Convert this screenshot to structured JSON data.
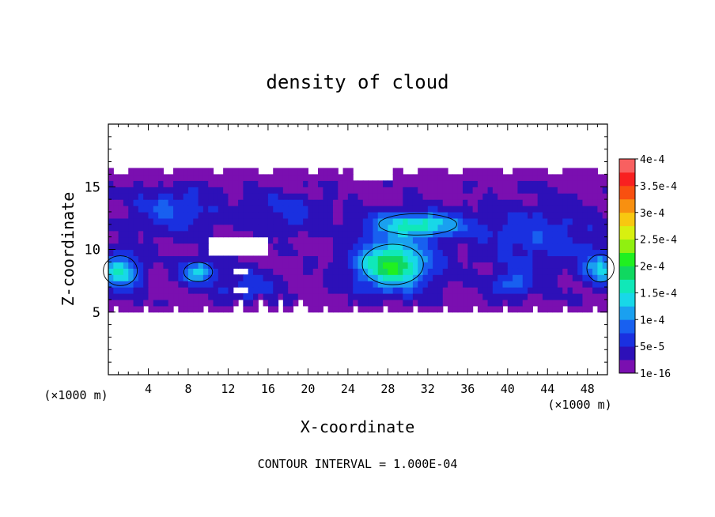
{
  "chart_data": {
    "type": "heatmap",
    "title": "density of cloud",
    "xlabel": "X-coordinate",
    "ylabel": "Z-coordinate",
    "x_unit": "(×1000 m)",
    "y_unit": "(×1000 m)",
    "xlim": [
      0,
      50
    ],
    "ylim": [
      0,
      20
    ],
    "x_ticks": [
      4,
      8,
      12,
      16,
      20,
      24,
      28,
      32,
      36,
      40,
      44,
      48
    ],
    "y_ticks": [
      5,
      10,
      15
    ],
    "footer": "CONTOUR INTERVAL = 1.000E-04",
    "colorbar": {
      "labels": [
        "1e-16",
        "5e-5",
        "1e-4",
        "1.5e-4",
        "2e-4",
        "2.5e-4",
        "3e-4",
        "3.5e-4",
        "4e-4"
      ],
      "levels": [
        0,
        2.5e-05,
        5e-05,
        7.5e-05,
        0.0001,
        0.000125,
        0.00015,
        0.000175,
        0.0002,
        0.000225,
        0.00025,
        0.000275,
        0.0003,
        0.000325,
        0.00035,
        0.000375,
        0.0004
      ],
      "colors": [
        "#7a0fb0",
        "#2d10b8",
        "#1a30e0",
        "#1860f0",
        "#1aa0f0",
        "#18d8e8",
        "#10e8b8",
        "#10d860",
        "#20f020",
        "#90f010",
        "#d8f010",
        "#f8c810",
        "#f89010",
        "#f85010",
        "#f82020",
        "#f86060"
      ]
    },
    "cloud_layer": {
      "base_z": 5.0,
      "top_z": 16.7
    },
    "features": [
      {
        "x": 28.5,
        "z": 8.8,
        "sx": 3.6,
        "sz": 1.9,
        "value": 0.00019
      },
      {
        "x": 31.0,
        "z": 12.0,
        "sx": 4.6,
        "sz": 1.0,
        "value": 0.00014
      },
      {
        "x": 1.2,
        "z": 8.3,
        "sx": 2.0,
        "sz": 1.4,
        "value": 0.00013
      },
      {
        "x": 9.0,
        "z": 8.2,
        "sx": 1.7,
        "sz": 0.9,
        "value": 0.00012
      },
      {
        "x": 49.3,
        "z": 8.5,
        "sx": 1.6,
        "sz": 1.3,
        "value": 0.00011
      },
      {
        "x": 6.5,
        "z": 13.2,
        "sx": 4.0,
        "sz": 1.8,
        "value": 6e-05
      },
      {
        "x": 18.0,
        "z": 13.0,
        "sx": 4.0,
        "sz": 1.6,
        "value": 4e-05
      },
      {
        "x": 43.0,
        "z": 11.0,
        "sx": 6.0,
        "sz": 2.5,
        "value": 5e-05
      },
      {
        "x": 14.0,
        "z": 7.0,
        "sx": 3.0,
        "sz": 1.2,
        "value": 5e-05
      },
      {
        "x": 40.5,
        "z": 7.3,
        "sx": 2.0,
        "sz": 1.0,
        "value": 7e-05
      }
    ]
  }
}
